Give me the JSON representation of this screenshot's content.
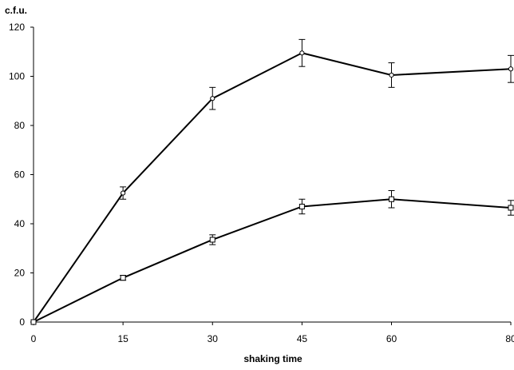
{
  "chart_data": {
    "type": "line",
    "title": "",
    "ylabel": "c.f.u.",
    "xlabel": "shaking time",
    "x": [
      0,
      15,
      30,
      45,
      60,
      80
    ],
    "x_tick_labels": [
      "0",
      "15",
      "30",
      "45",
      "60",
      "80"
    ],
    "xlim": [
      0,
      80
    ],
    "ylim": [
      0,
      120
    ],
    "y_ticks": [
      0,
      20,
      40,
      60,
      80,
      100,
      120
    ],
    "grid": false,
    "legend": false,
    "series": [
      {
        "marker": "circle",
        "values": [
          0,
          52.5,
          91,
          109.5,
          100.5,
          103
        ],
        "error": [
          0,
          2.5,
          4.5,
          5.5,
          5,
          5.5
        ],
        "color": "#000000"
      },
      {
        "marker": "square",
        "values": [
          0,
          18,
          33.5,
          47,
          50,
          46.5
        ],
        "error": [
          0,
          1,
          2,
          3,
          3.5,
          3
        ],
        "color": "#000000"
      }
    ]
  }
}
